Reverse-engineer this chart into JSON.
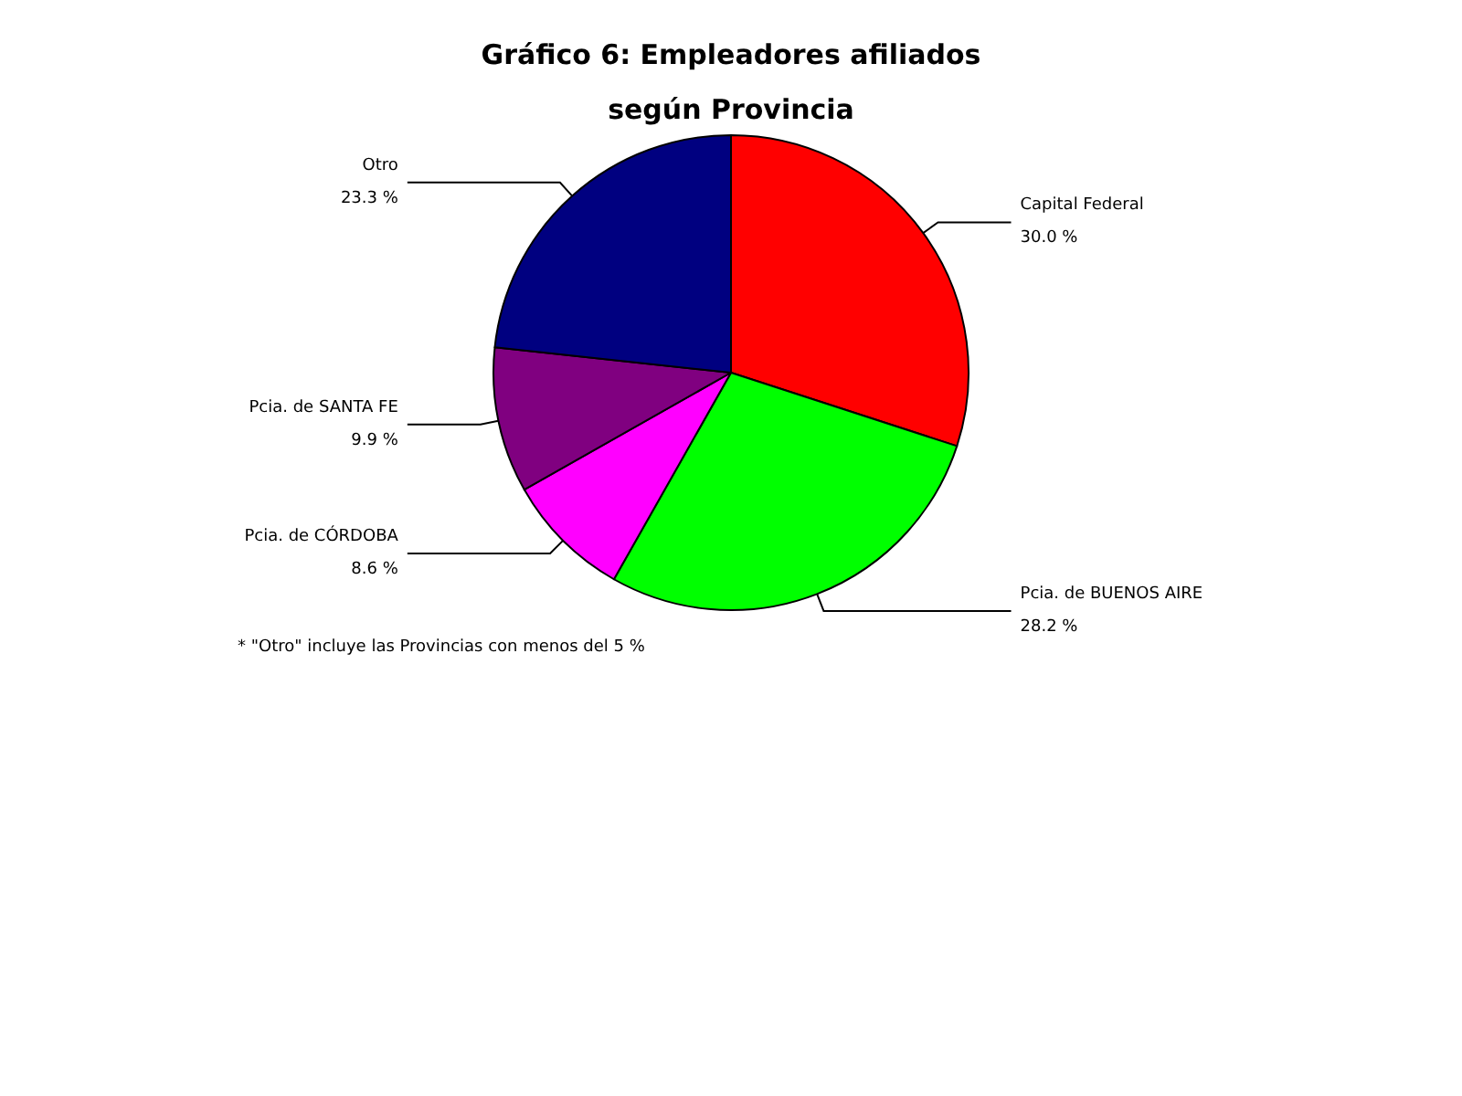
{
  "chart_data": {
    "type": "pie",
    "title": "Gráfico 6: Empleadores afiliados\nsegún Provincia",
    "categories": [
      "Capital Federal",
      "Pcia. de BUENOS AIRE",
      "Pcia. de CÓRDOBA",
      "Pcia. de SANTA FE",
      "Otro"
    ],
    "values": [
      30.0,
      28.2,
      8.6,
      9.9,
      23.3
    ],
    "value_labels": [
      "30.0 %",
      "28.2 %",
      "8.6 %",
      "9.9 %",
      "23.3 %"
    ],
    "colors": [
      "#ff0000",
      "#00ff00",
      "#ff00ff",
      "#800080",
      "#000080"
    ],
    "annotations": [
      "* \"Otro\" incluye las Provincias con menos del 5 %"
    ]
  }
}
